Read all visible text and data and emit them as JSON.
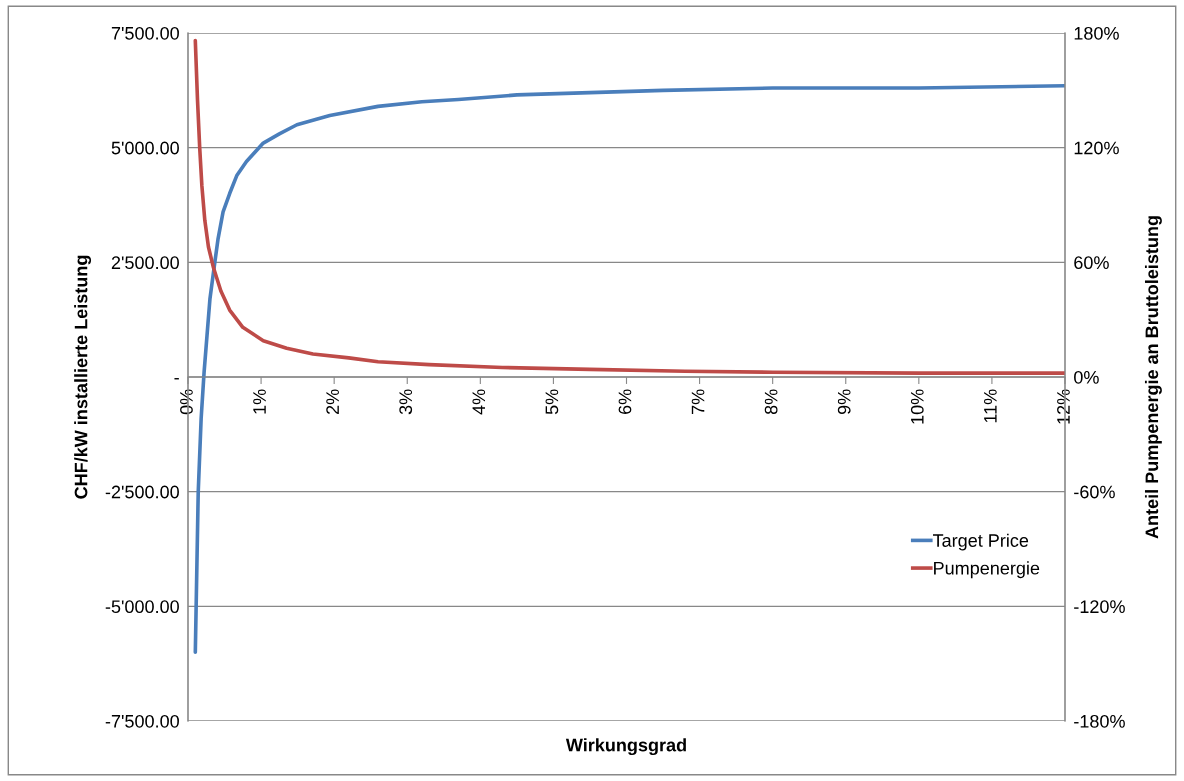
{
  "chart_data": {
    "type": "line",
    "xlabel": "Wirkungsgrad",
    "ylabel": "CHF/kW installierte Leistung",
    "y2label": "Anteil Pumpenergie an Bruttoleistung",
    "xlim": [
      0,
      12
    ],
    "xticks": [
      {
        "value": 0,
        "label": "0%"
      },
      {
        "value": 1,
        "label": "1%"
      },
      {
        "value": 2,
        "label": "2%"
      },
      {
        "value": 3,
        "label": "3%"
      },
      {
        "value": 4,
        "label": "4%"
      },
      {
        "value": 5,
        "label": "5%"
      },
      {
        "value": 6,
        "label": "6%"
      },
      {
        "value": 7,
        "label": "7%"
      },
      {
        "value": 8,
        "label": "8%"
      },
      {
        "value": 9,
        "label": "9%"
      },
      {
        "value": 10,
        "label": "10%"
      },
      {
        "value": 11,
        "label": "11%"
      },
      {
        "value": 12,
        "label": "12%"
      }
    ],
    "ylim": [
      -7500,
      7500
    ],
    "yticks": [
      {
        "value": -7500,
        "label": "-7'500.00"
      },
      {
        "value": -5000,
        "label": "-5'000.00"
      },
      {
        "value": -2500,
        "label": "-2'500.00"
      },
      {
        "value": 0,
        "label": "-"
      },
      {
        "value": 2500,
        "label": "2'500.00"
      },
      {
        "value": 5000,
        "label": "5'000.00"
      },
      {
        "value": 7500,
        "label": "7'500.00"
      }
    ],
    "y2lim": [
      -180,
      180
    ],
    "y2ticks": [
      {
        "value": -180,
        "label": "-180%"
      },
      {
        "value": -120,
        "label": "-120%"
      },
      {
        "value": -60,
        "label": "-60%"
      },
      {
        "value": 0,
        "label": "0%"
      },
      {
        "value": 60,
        "label": "60%"
      },
      {
        "value": 120,
        "label": "120%"
      },
      {
        "value": 180,
        "label": "180%"
      }
    ],
    "grid": "y",
    "legend": "right",
    "marker": "none",
    "line_style": "solid",
    "series": [
      {
        "name": "Target Price",
        "color": "#4a7ebb",
        "x": [
          0.1,
          0.14,
          0.18,
          0.22,
          0.26,
          0.3,
          0.35,
          0.41,
          0.48,
          0.57,
          0.67,
          0.8,
          1.03,
          1.25,
          1.49,
          1.94,
          2.6,
          3.2,
          3.7,
          4.5,
          5.5,
          6.5,
          8,
          10,
          12
        ],
        "values": [
          -6000,
          -2500,
          -900,
          100,
          900,
          1700,
          2300,
          3000,
          3600,
          4000,
          4400,
          4700,
          5100,
          5300,
          5500,
          5700,
          5900,
          6000,
          6050,
          6150,
          6200,
          6250,
          6300,
          6300,
          6350
        ]
      },
      {
        "name": "Pumpenergie",
        "color": "#be4b48",
        "axis": "y2",
        "x": [
          0.1,
          0.13,
          0.16,
          0.19,
          0.23,
          0.28,
          0.35,
          0.45,
          0.57,
          0.75,
          1.03,
          1.35,
          1.71,
          2.2,
          2.6,
          3.3,
          4.3,
          5.5,
          6.8,
          8,
          10,
          12
        ],
        "values": [
          176,
          145,
          120,
          100,
          82,
          68,
          57,
          45,
          35,
          26,
          19,
          15,
          12,
          10,
          8,
          6.5,
          5,
          4,
          3,
          2.5,
          2,
          2
        ]
      }
    ]
  }
}
